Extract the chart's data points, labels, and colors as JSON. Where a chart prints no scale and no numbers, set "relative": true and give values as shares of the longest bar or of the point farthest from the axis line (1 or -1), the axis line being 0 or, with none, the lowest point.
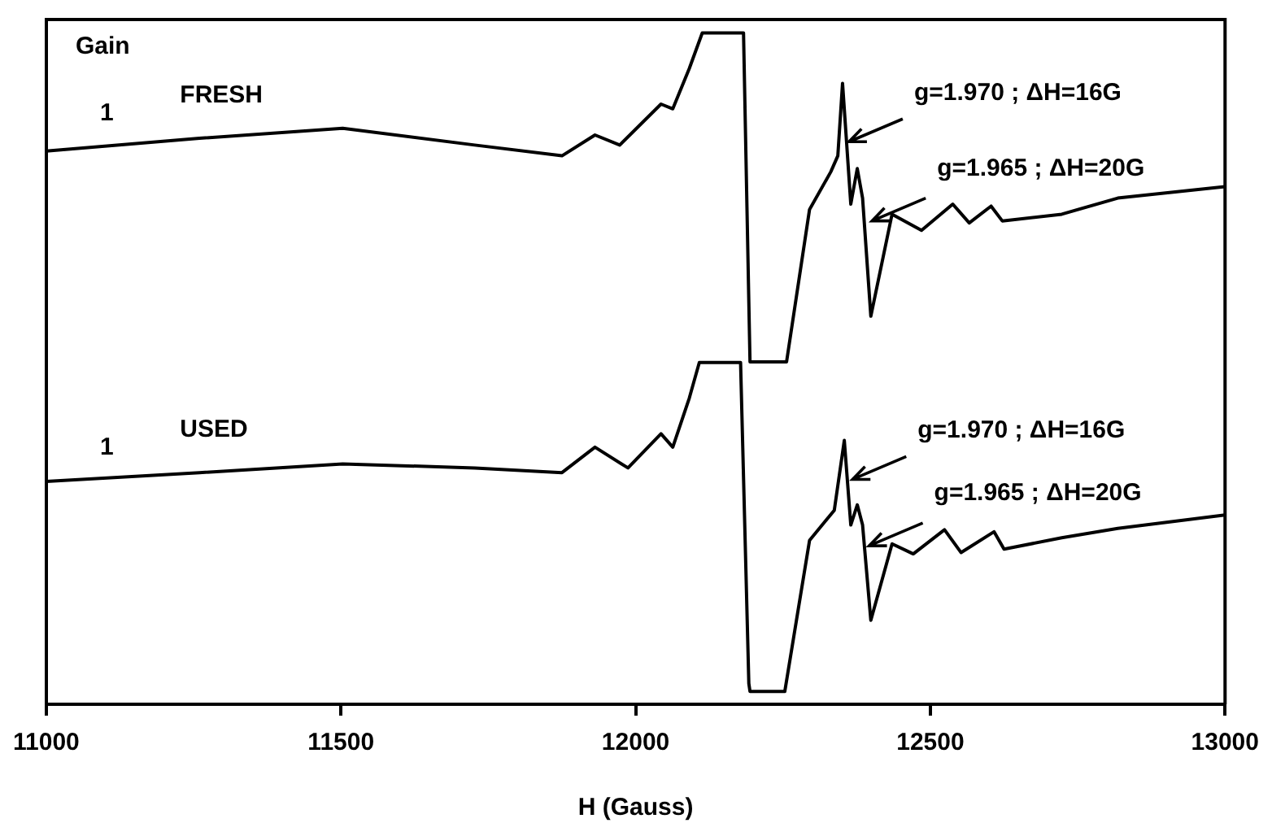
{
  "chart_data": {
    "type": "line",
    "xlabel": "H (Gauss)",
    "relative": true,
    "xlim": [
      11000,
      13000
    ],
    "xticks": [
      11000,
      11500,
      12000,
      12500,
      13000
    ],
    "grid": false,
    "legend": false,
    "marker": "none",
    "line_style": "solid",
    "x": [
      11000,
      11260,
      11503,
      11727,
      11875,
      11931,
      11973,
      12043,
      12063,
      12091,
      12113,
      12183,
      12194,
      12256,
      12295,
      12331,
      12343,
      12351,
      12365,
      12376,
      12385,
      12399,
      12435,
      12485,
      12538,
      12566,
      12603,
      12622,
      12723,
      12818,
      13000
    ],
    "series": [
      {
        "name": "FRESH",
        "color": "#000000",
        "values": [
          0.824,
          0.843,
          0.858,
          0.833,
          0.817,
          0.848,
          0.833,
          0.894,
          0.887,
          0.947,
          1,
          1,
          0.51,
          0.51,
          0.737,
          0.793,
          0.817,
          0.925,
          0.745,
          0.798,
          0.754,
          0.578,
          0.73,
          0.706,
          0.745,
          0.717,
          0.742,
          0.72,
          0.73,
          0.754,
          0.771
        ]
      },
      {
        "name": "USED",
        "color": "#000000",
        "x": [
          11000,
          11260,
          11503,
          11727,
          11875,
          11931,
          11987,
          12043,
          12063,
          12091,
          12108,
          12178,
          12192,
          12194,
          12253,
          12295,
          12337,
          12354,
          12365,
          12376,
          12385,
          12399,
          12435,
          12471,
          12524,
          12552,
          12608,
          12625,
          12723,
          12818,
          13000
        ],
        "values": [
          0.332,
          0.345,
          0.358,
          0.352,
          0.345,
          0.383,
          0.352,
          0.403,
          0.383,
          0.456,
          0.509,
          0.509,
          0.031,
          0.019,
          0.019,
          0.244,
          0.289,
          0.393,
          0.267,
          0.297,
          0.267,
          0.125,
          0.239,
          0.224,
          0.26,
          0.226,
          0.257,
          0.231,
          0.248,
          0.262,
          0.282
        ]
      }
    ],
    "annotations": [
      "Gain",
      "1",
      "1",
      {
        "text": "g=1.970 ; ΔH=16G",
        "x": 12362,
        "y": 0.838
      },
      {
        "text": "g=1.965 ; ΔH=20G",
        "x": 12401,
        "y": 0.72
      },
      {
        "text": "g=1.970 ; ΔH=16G",
        "x": 12368,
        "y": 0.335
      },
      {
        "text": "g=1.965 ; ΔH=20G",
        "x": 12396,
        "y": 0.236
      }
    ]
  }
}
